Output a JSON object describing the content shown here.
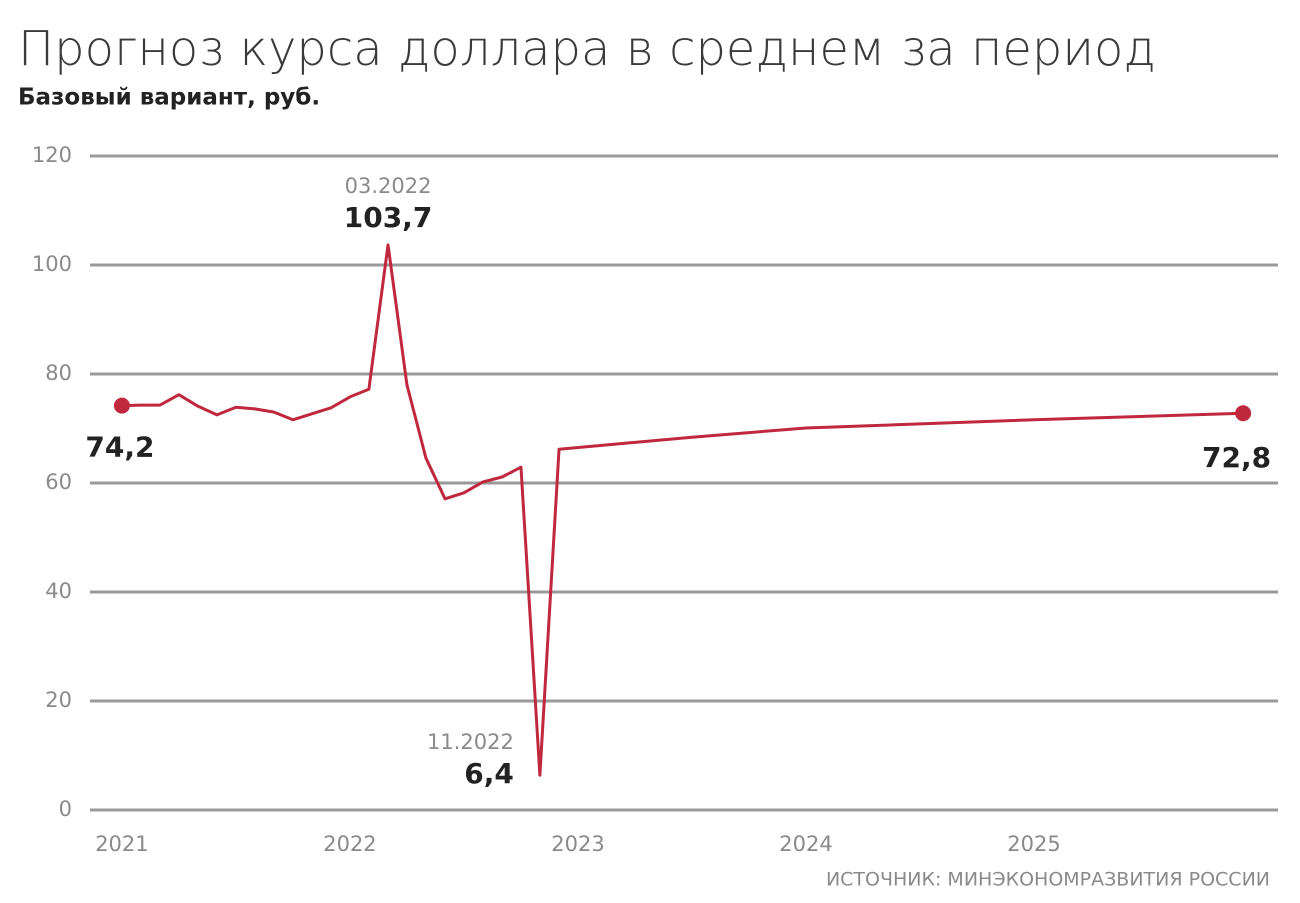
{
  "chart_data": {
    "type": "line",
    "title": "Прогноз курса доллара в среднем за период",
    "subtitle": "Базовый вариант, руб.",
    "source": "ИСТОЧНИК: МИНЭКОНОМРАЗВИТИЯ РОССИИ",
    "x": [
      2021,
      2021.083,
      2021.167,
      2021.25,
      2021.333,
      2021.417,
      2021.5,
      2021.583,
      2021.667,
      2021.75,
      2021.833,
      2021.917,
      2022,
      2022.083,
      2022.167,
      2022.25,
      2022.333,
      2022.417,
      2022.5,
      2022.583,
      2022.667,
      2022.75,
      2022.833,
      2022.917,
      2023.5,
      2024,
      2025,
      2025.917
    ],
    "series": [
      {
        "color": "#c0283d",
        "values": [
          74.2,
          74.3,
          74.3,
          76.2,
          74.1,
          72.5,
          73.9,
          73.6,
          73.0,
          71.6,
          72.7,
          73.8,
          75.8,
          77.2,
          103.7,
          78.0,
          64.6,
          57.1,
          58.2,
          60.2,
          61.1,
          62.9,
          6.4,
          66.2,
          68.4,
          70.1,
          71.6,
          72.8
        ],
        "value_labels": [
          "74,2",
          null,
          null,
          null,
          null,
          null,
          null,
          null,
          null,
          null,
          null,
          null,
          null,
          null,
          "103,7",
          null,
          null,
          null,
          null,
          null,
          null,
          null,
          "6,4",
          null,
          null,
          null,
          null,
          "72,8"
        ]
      }
    ],
    "annotations": [
      {
        "label": "03.2022",
        "x": 2022.167
      },
      {
        "label": "11.2022",
        "x": 2022.833
      }
    ],
    "xlim": [
      2020.86,
      2026.07
    ],
    "xticks": [
      2021,
      2022,
      2023,
      2024,
      2025
    ],
    "ylim": [
      0,
      120
    ],
    "yticks": [
      0,
      20,
      40,
      60,
      80,
      100,
      120
    ],
    "grid": true
  }
}
